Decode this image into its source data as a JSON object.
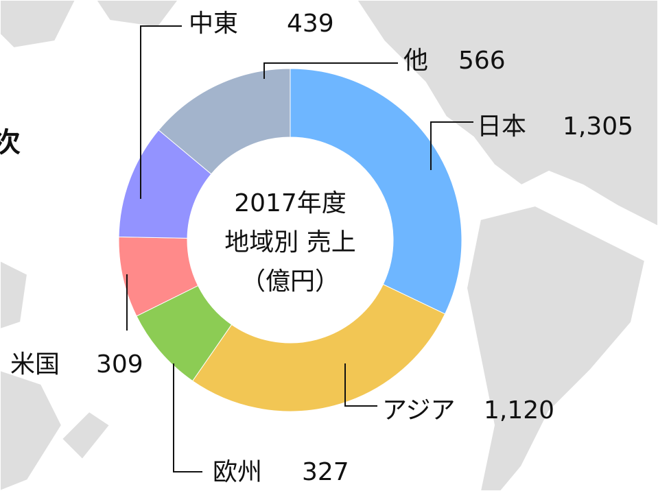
{
  "chart_data": {
    "type": "pie",
    "center_text": [
      "2017年度",
      "地域別 売上",
      "（億円）"
    ],
    "side_text": "次",
    "categories": [
      "日本",
      "アジア",
      "欧州",
      "米国",
      "中東",
      "他"
    ],
    "values": [
      1305,
      1120,
      327,
      309,
      439,
      566
    ],
    "value_labels": [
      "1,305",
      "1,120",
      "327",
      "309",
      "439",
      "566"
    ],
    "colors": [
      "#6eb6ff",
      "#f2c654",
      "#8ccc54",
      "#ff8a8a",
      "#9393ff",
      "#a3b4cc"
    ]
  }
}
